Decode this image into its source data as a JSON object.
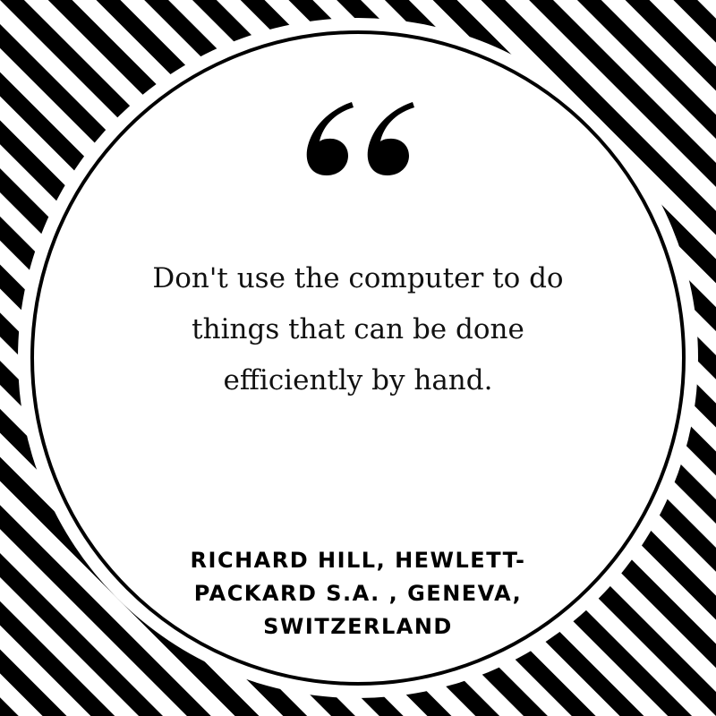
{
  "colors": {
    "stripe": "#000000",
    "background": "#ffffff",
    "circle_fill": "#ffffff",
    "circle_border": "#000000",
    "text": "#111111"
  },
  "decoration": {
    "quote_mark_icon": "open-double-quote-icon",
    "background_pattern": "diagonal-stripes"
  },
  "quote": {
    "lines": [
      "Don't use the computer to do",
      "things that can be done",
      "efficiently by hand."
    ]
  },
  "author": {
    "lines": [
      "RICHARD HILL, HEWLETT-",
      "PACKARD S.A. , GENEVA,",
      "SWITZERLAND"
    ]
  }
}
